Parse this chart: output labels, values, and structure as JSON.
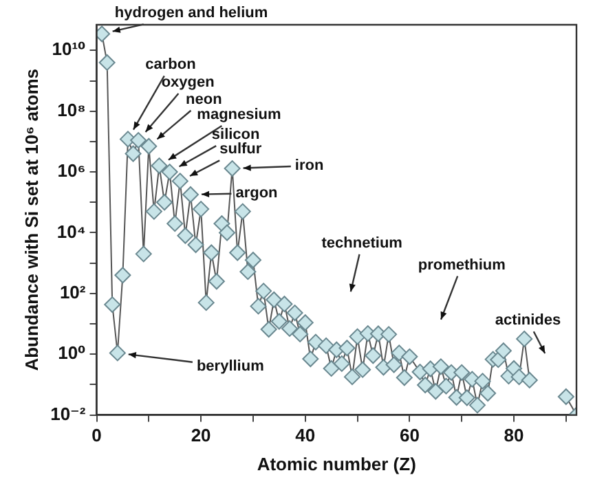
{
  "chart_data": {
    "type": "line",
    "xlabel": "Atomic number (Z)",
    "ylabel": "Abundance with Si set at 10⁶ atoms",
    "log": "y",
    "grid": false,
    "legend": false,
    "marker": "diamond",
    "line_style": "solid",
    "xlim": [
      0,
      92
    ],
    "xticks": [
      0,
      {
        "value": 10,
        "label": null
      },
      20,
      {
        "value": 30,
        "label": null
      },
      40,
      {
        "value": 50,
        "label": null
      },
      60,
      {
        "value": 70,
        "label": null
      },
      80,
      {
        "value": 90,
        "label": null
      }
    ],
    "ylim": [
      0.01,
      70000000000.0
    ],
    "yticks": [
      {
        "value": 0.01,
        "label": "10⁻²"
      },
      {
        "value": 0.1,
        "label": null
      },
      {
        "value": 1,
        "label": "10⁰"
      },
      {
        "value": 10,
        "label": null
      },
      {
        "value": 100,
        "label": "10²"
      },
      {
        "value": 1000,
        "label": null
      },
      {
        "value": 10000,
        "label": "10⁴"
      },
      {
        "value": 100000,
        "label": null
      },
      {
        "value": 1000000,
        "label": "10⁶"
      },
      {
        "value": 10000000,
        "label": null
      },
      {
        "value": 100000000,
        "label": "10⁸"
      },
      {
        "value": 1000000000,
        "label": null
      },
      {
        "value": 10000000000,
        "label": "10¹⁰"
      }
    ],
    "series": [
      {
        "color": "#c8e4e8",
        "x": [
          1,
          2,
          3,
          4,
          5,
          6,
          7,
          8,
          9,
          10,
          11,
          12,
          13,
          14,
          15,
          16,
          17,
          18,
          19,
          20,
          21,
          22,
          23,
          24,
          25,
          26,
          27,
          28,
          29,
          30,
          31,
          32,
          33,
          34,
          35,
          36,
          37,
          38,
          39,
          40,
          41,
          42,
          44,
          45,
          46,
          47,
          48,
          49,
          50,
          51,
          52,
          53,
          54,
          55,
          56,
          57,
          58,
          59,
          60,
          62,
          63,
          64,
          65,
          66,
          67,
          68,
          69,
          70,
          71,
          72,
          73,
          74,
          75,
          76,
          77,
          78,
          79,
          80,
          81,
          82,
          83
        ],
        "values": [
          35000000000.0,
          4000000000.0,
          43,
          1.1,
          400,
          12000000.0,
          4000000.0,
          11000000.0,
          2000,
          7000000.0,
          50000.0,
          1600000.0,
          100000.0,
          1000000.0,
          20000.0,
          500000.0,
          8000,
          180000.0,
          4000,
          60000.0,
          50,
          2200,
          250,
          20000.0,
          10000.0,
          1300000.0,
          2200,
          50000.0,
          520,
          1260,
          38,
          120,
          6.6,
          62,
          12,
          45,
          7,
          23,
          4.6,
          11,
          0.7,
          2.5,
          1.9,
          0.34,
          1.4,
          0.49,
          1.6,
          0.18,
          3.8,
          0.31,
          4.8,
          0.9,
          4.7,
          0.37,
          4.5,
          0.45,
          1.1,
          0.17,
          0.83,
          0.26,
          0.097,
          0.33,
          0.06,
          0.39,
          0.089,
          0.25,
          0.038,
          0.25,
          0.037,
          0.15,
          0.021,
          0.13,
          0.052,
          0.68,
          0.66,
          1.3,
          0.19,
          0.34,
          0.18,
          3.2,
          0.14
        ]
      },
      {
        "color": "#c8e4e8",
        "x": [
          90,
          92
        ],
        "values": [
          0.04,
          0.01
        ]
      }
    ],
    "annotations": [
      {
        "text": "hydrogen and helium",
        "x": 1,
        "y": 35000000000.0
      },
      {
        "text": "carbon",
        "x": 6,
        "y": 12000000.0
      },
      {
        "text": "oxygen",
        "x": 8,
        "y": 11000000.0
      },
      {
        "text": "neon",
        "x": 10,
        "y": 7000000.0
      },
      {
        "text": "magnesium",
        "x": 12,
        "y": 1600000.0
      },
      {
        "text": "silicon",
        "x": 14,
        "y": 1000000.0
      },
      {
        "text": "sulfur",
        "x": 16,
        "y": 500000.0
      },
      {
        "text": "iron",
        "x": 26,
        "y": 1300000.0
      },
      {
        "text": "argon",
        "x": 18,
        "y": 180000.0
      },
      {
        "text": "beryllium",
        "x": 4,
        "y": 1.1
      },
      "technetium",
      "promethium",
      "actinides"
    ]
  }
}
